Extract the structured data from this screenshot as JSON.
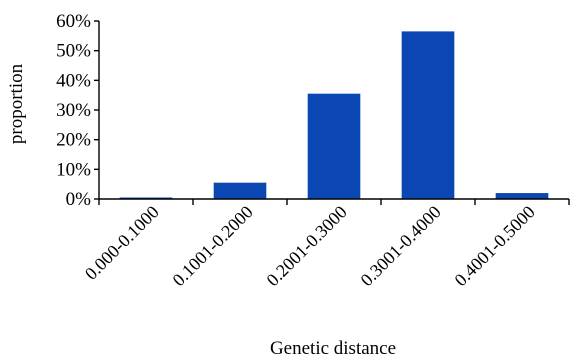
{
  "chart_data": {
    "type": "bar",
    "categories": [
      "0.000-0.1000",
      "0.1001-0.2000",
      "0.2001-0.3000",
      "0.3001-0.4000",
      "0.4001-0.5000"
    ],
    "values": [
      0.5,
      5.5,
      35.5,
      56.5,
      2.0
    ],
    "ylim": [
      0,
      60
    ],
    "yticks": [
      0,
      10,
      20,
      30,
      40,
      50,
      60
    ],
    "ytick_labels": [
      "0%",
      "10%",
      "20%",
      "30%",
      "40%",
      "50%",
      "60%"
    ],
    "xlabel": "Genetic distance",
    "ylabel": "proportion",
    "grid": false,
    "bar_color": "#0b47b3"
  }
}
